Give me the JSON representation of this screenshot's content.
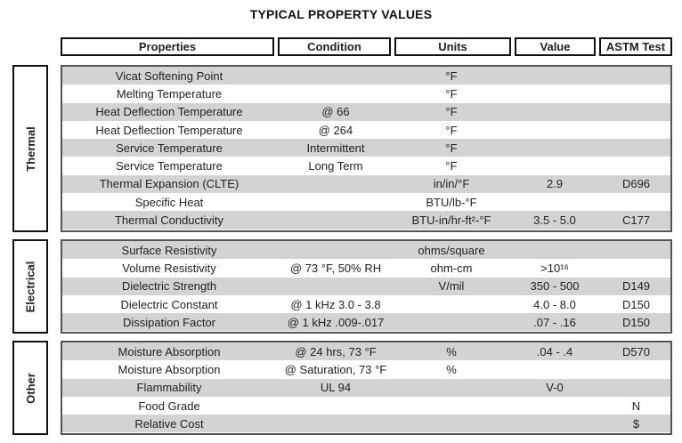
{
  "title": "TYPICAL PROPERTY VALUES",
  "headers": [
    "Properties",
    "Condition",
    "Units",
    "Value",
    "ASTM Test"
  ],
  "groups": [
    {
      "label": "Thermal",
      "rows": [
        [
          "Vicat Softening Point",
          "",
          "°F",
          "",
          ""
        ],
        [
          "Melting Temperature",
          "",
          "°F",
          "",
          ""
        ],
        [
          "Heat Deflection Temperature",
          "@ 66",
          "°F",
          "",
          ""
        ],
        [
          "Heat Deflection Temperature",
          "@ 264",
          "°F",
          "",
          ""
        ],
        [
          "Service Temperature",
          "Intermittent",
          "°F",
          "",
          ""
        ],
        [
          "Service Temperature",
          "Long Term",
          "°F",
          "",
          ""
        ],
        [
          "Thermal Expansion (CLTE)",
          "",
          "in/in/°F",
          "2.9",
          "D696"
        ],
        [
          "Specific Heat",
          "",
          "BTU/lb-°F",
          "",
          ""
        ],
        [
          "Thermal Conductivity",
          "",
          "BTU-in/hr-ft²-°F",
          "3.5 - 5.0",
          "C177"
        ]
      ]
    },
    {
      "label": "Electrical",
      "rows": [
        [
          "Surface Resistivity",
          "",
          "ohms/square",
          "",
          ""
        ],
        [
          "Volume Resistivity",
          "@ 73 °F, 50% RH",
          "ohm-cm",
          ">10¹⁶",
          ""
        ],
        [
          "Dielectric Strength",
          "",
          "V/mil",
          "350 - 500",
          "D149"
        ],
        [
          "Dielectric Constant",
          "@ 1 kHz 3.0 - 3.8",
          "",
          "4.0 - 8.0",
          "D150"
        ],
        [
          "Dissipation Factor",
          "@ 1 kHz .009-.017",
          "",
          ".07 - .16",
          "D150"
        ]
      ]
    },
    {
      "label": "Other",
      "rows": [
        [
          "Moisture Absorption",
          "@ 24 hrs, 73 °F",
          "%",
          ".04 - .4",
          "D570"
        ],
        [
          "Moisture Absorption",
          "@ Saturation, 73 °F",
          "%",
          "",
          ""
        ],
        [
          "Flammability",
          "UL 94",
          "",
          "V-0",
          ""
        ],
        [
          "Food Grade",
          "",
          "",
          "",
          "N"
        ],
        [
          "Relative Cost",
          "",
          "",
          "",
          "$"
        ]
      ]
    }
  ]
}
